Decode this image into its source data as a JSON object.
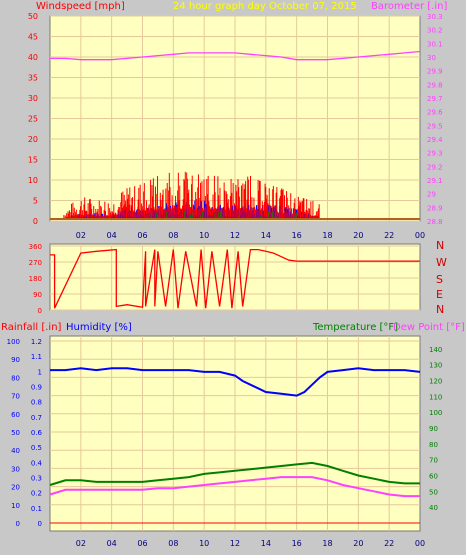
{
  "header": {
    "title": "24 hour graph day   October 07, 2015",
    "left_label": "Windspeed [mph]",
    "right_label": "Barometer [.in]"
  },
  "directions": [
    "N",
    "W",
    "S",
    "E",
    "N"
  ],
  "bottom_labels": {
    "rainfall": "Rainfall [.in]",
    "humidity": "Humidity [%]",
    "temperature": "Temperature [°F]",
    "dewpoint": "Dew Point [°F]"
  },
  "colors": {
    "background": "#c8c8c8",
    "plot_bg": "#ffffc0",
    "grid": "#e6c99a",
    "wind_speed": "#ff0000",
    "wind_avg": "#0000ff",
    "wind_green": "#008000",
    "barometer": "#ff40ff",
    "direction": "#ff0000",
    "humidity": "#0000ff",
    "temperature": "#008000",
    "dewpoint": "#ff40ff",
    "rainfall": "#ff0000",
    "title": "#ffff00"
  },
  "chart_data": [
    {
      "type": "line",
      "name": "wind-barometer",
      "x_ticks": [
        "02",
        "04",
        "06",
        "08",
        "10",
        "12",
        "14",
        "16",
        "18",
        "20",
        "22",
        "00"
      ],
      "left_axis": {
        "label": "Windspeed [mph]",
        "ylim": [
          0,
          50
        ],
        "ticks": [
          0,
          5,
          10,
          15,
          20,
          25,
          30,
          35,
          40,
          45,
          50
        ]
      },
      "right_axis": {
        "label": "Barometer [.in]",
        "ylim": [
          28.8,
          30.3
        ],
        "ticks": [
          "28.8",
          "28.9",
          "29",
          "29.1",
          "29.2",
          "29.3",
          "29.4",
          "29.5",
          "29.6",
          "29.7",
          "29.8",
          "29.9",
          "30",
          "30.1",
          "30.2",
          "30.3"
        ]
      },
      "series": [
        {
          "name": "Barometer [.in]",
          "axis": "right",
          "x": [
            0,
            1,
            2,
            3,
            4,
            5,
            6,
            7,
            8,
            9,
            10,
            11,
            12,
            13,
            14,
            15,
            16,
            17,
            18,
            19,
            20,
            21,
            22,
            23,
            24
          ],
          "values": [
            29.99,
            29.99,
            29.98,
            29.98,
            29.98,
            29.99,
            30.0,
            30.01,
            30.02,
            30.03,
            30.03,
            30.03,
            30.03,
            30.02,
            30.01,
            30.0,
            29.98,
            29.98,
            29.98,
            29.99,
            30.0,
            30.01,
            30.02,
            30.03,
            30.04
          ]
        }
      ],
      "wind_profile": {
        "x": [
          1,
          2,
          3,
          4,
          5,
          6,
          7,
          8,
          9,
          10,
          11,
          12,
          13,
          14,
          15,
          16,
          17,
          17.5
        ],
        "gust_max": [
          3,
          6,
          5,
          5,
          8,
          9,
          11,
          12,
          12,
          11,
          11,
          10,
          11,
          9,
          8,
          6,
          5,
          4
        ],
        "avg_max": [
          1,
          2,
          2,
          2,
          3,
          4,
          4,
          5,
          5,
          5,
          4,
          4,
          4,
          4,
          4,
          3,
          2,
          1
        ]
      }
    },
    {
      "type": "line",
      "name": "wind-direction",
      "x_ticks": [
        "02",
        "04",
        "06",
        "08",
        "10",
        "12",
        "14",
        "16",
        "18",
        "20",
        "22",
        "00"
      ],
      "ylim": [
        0,
        360
      ],
      "ticks": [
        0,
        90,
        180,
        270,
        360
      ],
      "series": [
        {
          "name": "direction",
          "x": [
            0,
            0.3,
            0.3,
            2,
            3,
            4.3,
            4.3,
            5,
            6,
            6.2,
            6.2,
            6.8,
            6.8,
            7,
            7.5,
            8,
            8.3,
            8.8,
            9.5,
            9.8,
            10.1,
            10.5,
            11,
            11.5,
            11.8,
            12.2,
            12.5,
            13,
            13.5,
            14,
            14.5,
            15,
            15.5,
            16,
            17,
            18,
            20,
            22,
            24
          ],
          "values": [
            310,
            310,
            10,
            320,
            330,
            340,
            20,
            30,
            15,
            330,
            20,
            340,
            20,
            330,
            20,
            340,
            10,
            330,
            20,
            340,
            10,
            330,
            20,
            340,
            10,
            330,
            20,
            340,
            340,
            330,
            320,
            300,
            280,
            275,
            275,
            275,
            275,
            275,
            275
          ]
        }
      ]
    },
    {
      "type": "line",
      "name": "humidity-temperature",
      "x_ticks": [
        "02",
        "04",
        "06",
        "08",
        "10",
        "12",
        "14",
        "16",
        "18",
        "20",
        "22",
        "00"
      ],
      "left_axis_a": {
        "label": "Rainfall [.in]",
        "ylim": [
          0,
          1.2
        ],
        "ticks": [
          "0",
          "0.1",
          "0.2",
          "0.3",
          "0.4",
          "0.5",
          "0.6",
          "0.7",
          "0.8",
          "0.9",
          "1",
          "1.1",
          "1.2"
        ]
      },
      "left_axis_b": {
        "label": "Humidity [%]",
        "ylim": [
          0,
          100
        ],
        "ticks": [
          0,
          10,
          20,
          30,
          40,
          50,
          60,
          70,
          80,
          90,
          100
        ]
      },
      "right_axis": {
        "label": "Temperature [°F]",
        "ylim": [
          30,
          145
        ],
        "ticks": [
          40,
          50,
          60,
          70,
          80,
          90,
          100,
          110,
          120,
          130,
          140
        ]
      },
      "series": [
        {
          "name": "Humidity [%]",
          "axis": "humidity",
          "x": [
            0,
            1,
            2,
            3,
            4,
            5,
            6,
            7,
            8,
            9,
            10,
            11,
            12,
            12.5,
            13,
            13.5,
            14,
            15,
            16,
            16.5,
            17,
            17.5,
            18,
            19,
            20,
            21,
            22,
            23,
            24
          ],
          "values": [
            84,
            84,
            85,
            84,
            85,
            85,
            84,
            84,
            84,
            84,
            83,
            83,
            81,
            78,
            76,
            74,
            72,
            71,
            70,
            72,
            76,
            80,
            83,
            84,
            85,
            84,
            84,
            84,
            83
          ]
        },
        {
          "name": "Temperature [°F]",
          "axis": "right",
          "x": [
            0,
            1,
            2,
            3,
            4,
            5,
            6,
            7,
            8,
            9,
            10,
            11,
            12,
            13,
            14,
            15,
            16,
            17,
            18,
            19,
            20,
            21,
            22,
            23,
            24
          ],
          "values": [
            54,
            57,
            57,
            56,
            56,
            56,
            56,
            57,
            58,
            59,
            61,
            62,
            63,
            64,
            65,
            66,
            67,
            68,
            66,
            63,
            60,
            58,
            56,
            55,
            55
          ]
        },
        {
          "name": "Dew Point [°F]",
          "axis": "right",
          "x": [
            0,
            1,
            2,
            3,
            4,
            5,
            6,
            7,
            8,
            9,
            10,
            11,
            12,
            13,
            14,
            15,
            16,
            17,
            18,
            19,
            20,
            21,
            22,
            23,
            24
          ],
          "values": [
            48,
            51,
            51,
            51,
            51,
            51,
            51,
            52,
            52,
            53,
            54,
            55,
            56,
            57,
            58,
            59,
            59,
            59,
            57,
            54,
            52,
            50,
            48,
            47,
            47
          ]
        },
        {
          "name": "Rainfall [.in]",
          "axis": "rain",
          "x": [
            0,
            24
          ],
          "values": [
            0,
            0
          ]
        }
      ]
    }
  ]
}
